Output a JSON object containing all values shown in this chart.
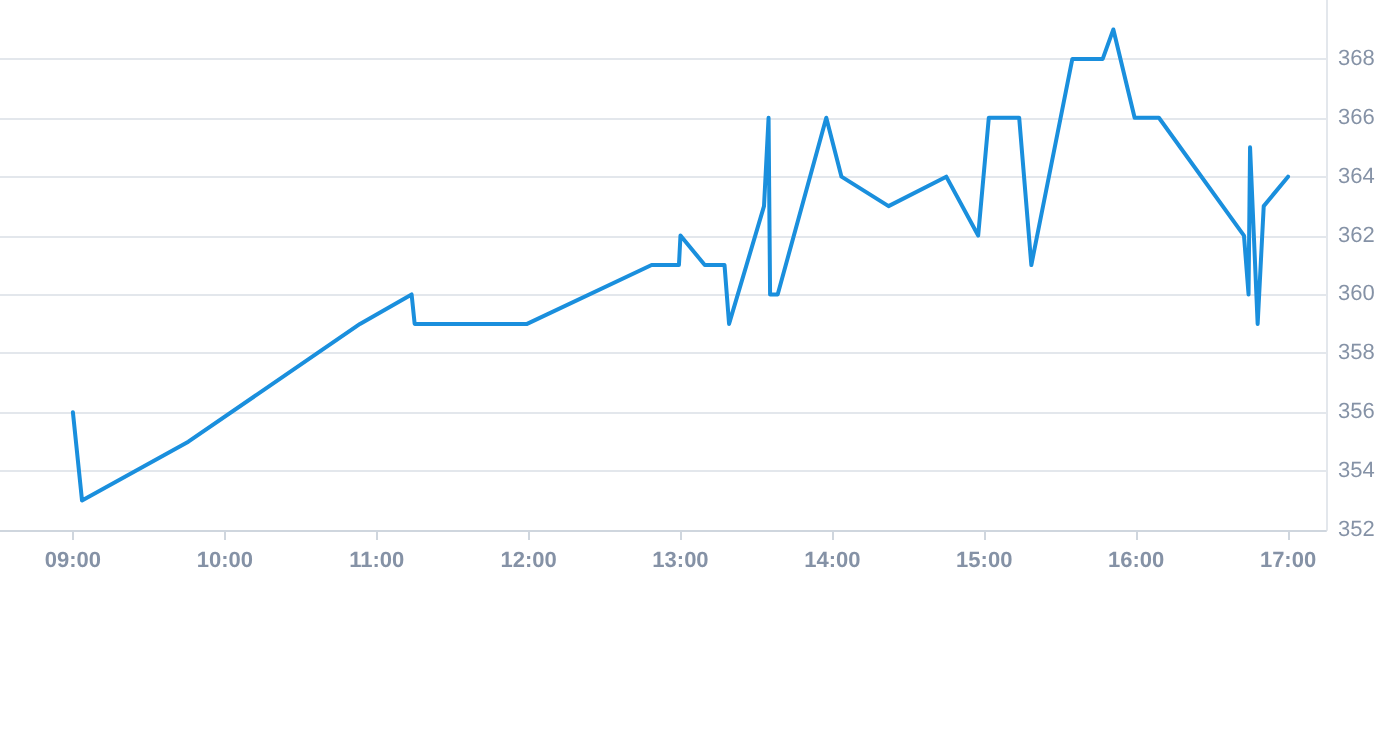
{
  "chart_data": {
    "type": "line",
    "x": [
      9.0,
      9.06,
      9.76,
      10.89,
      11.23,
      11.25,
      11.99,
      12.81,
      12.99,
      13.0,
      13.16,
      13.29,
      13.32,
      13.55,
      13.58,
      13.59,
      13.64,
      13.96,
      14.06,
      14.37,
      14.75,
      14.96,
      15.03,
      15.23,
      15.31,
      15.58,
      15.78,
      15.85,
      15.99,
      16.15,
      16.71,
      16.74,
      16.75,
      16.8,
      16.84,
      17.0
    ],
    "series": [
      {
        "color": "#1a8fdd",
        "values": [
          356,
          353,
          355,
          359,
          360,
          359,
          359,
          361,
          361,
          362,
          361,
          361,
          359,
          363,
          366,
          360,
          360,
          366,
          364,
          363,
          364,
          362,
          366,
          366,
          361,
          368,
          368,
          369,
          366,
          366,
          362,
          360,
          365,
          359,
          363,
          364
        ]
      }
    ],
    "xlim": [
      8.52,
      17.25
    ],
    "xticks": [
      {
        "value": 9,
        "label": "09:00"
      },
      {
        "value": 10,
        "label": "10:00"
      },
      {
        "value": 11,
        "label": "11:00"
      },
      {
        "value": 12,
        "label": "12:00"
      },
      {
        "value": 13,
        "label": "13:00"
      },
      {
        "value": 14,
        "label": "14:00"
      },
      {
        "value": 15,
        "label": "15:00"
      },
      {
        "value": 16,
        "label": "16:00"
      },
      {
        "value": 17,
        "label": "17:00"
      }
    ],
    "ylim": [
      352,
      370
    ],
    "yticks": [
      352,
      354,
      356,
      358,
      360,
      362,
      364,
      366,
      368
    ],
    "grid": "y",
    "marker": "none",
    "line_style": "solid"
  }
}
